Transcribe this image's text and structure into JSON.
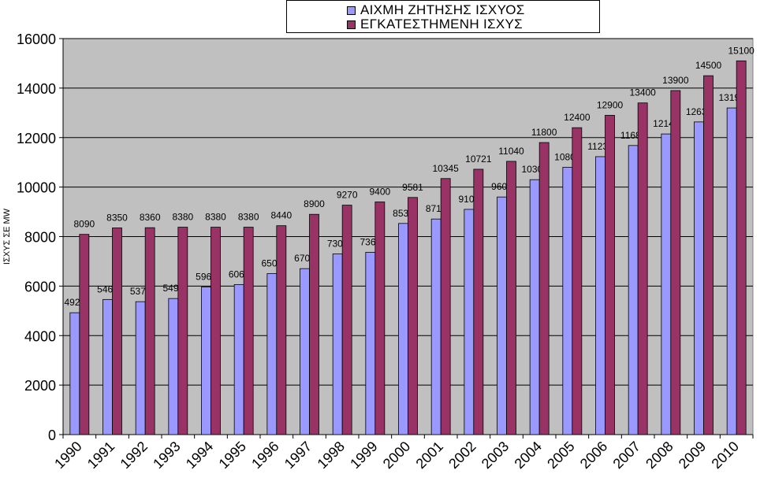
{
  "chart_data": {
    "type": "bar",
    "title": "",
    "xlabel": "",
    "ylabel": "ΙΣΧΥΣ ΣΕ MW",
    "ylim": [
      0,
      16000
    ],
    "yticks": [
      "0",
      "2000",
      "4000",
      "6000",
      "8000",
      "10000",
      "12000",
      "14000",
      "16000"
    ],
    "grid": true,
    "legend_position": "top-center",
    "categories": [
      "1990",
      "1991",
      "1992",
      "1993",
      "1994",
      "1995",
      "1996",
      "1997",
      "1998",
      "1999",
      "2000",
      "2001",
      "2002",
      "2003",
      "2004",
      "2005",
      "2006",
      "2007",
      "2008",
      "2009",
      "2010"
    ],
    "series": [
      {
        "name": "ΑΙΧΜΗ ΖΗΤΗΣΗΣ ΙΣΧΥΟΣ",
        "color": "#9999ff",
        "values": [
          4924,
          5460,
          5371,
          5498,
          5963,
          6063,
          6503,
          6706,
          7300,
          7366,
          8531,
          8710,
          9100,
          9600,
          10300,
          10800,
          11230,
          11680,
          12147,
          12633,
          13198
        ]
      },
      {
        "name": "ΕΓΚΑΤΕΣΤΗΜΕΝΗ ΙΣΧΥΣ",
        "color": "#993366",
        "values": [
          8090,
          8350,
          8360,
          8380,
          8380,
          8380,
          8440,
          8900,
          9270,
          9400,
          9581,
          10345,
          10721,
          11040,
          11800,
          12400,
          12900,
          13400,
          13900,
          14500,
          15100
        ]
      }
    ],
    "plot_background": "#c0c0c0"
  }
}
